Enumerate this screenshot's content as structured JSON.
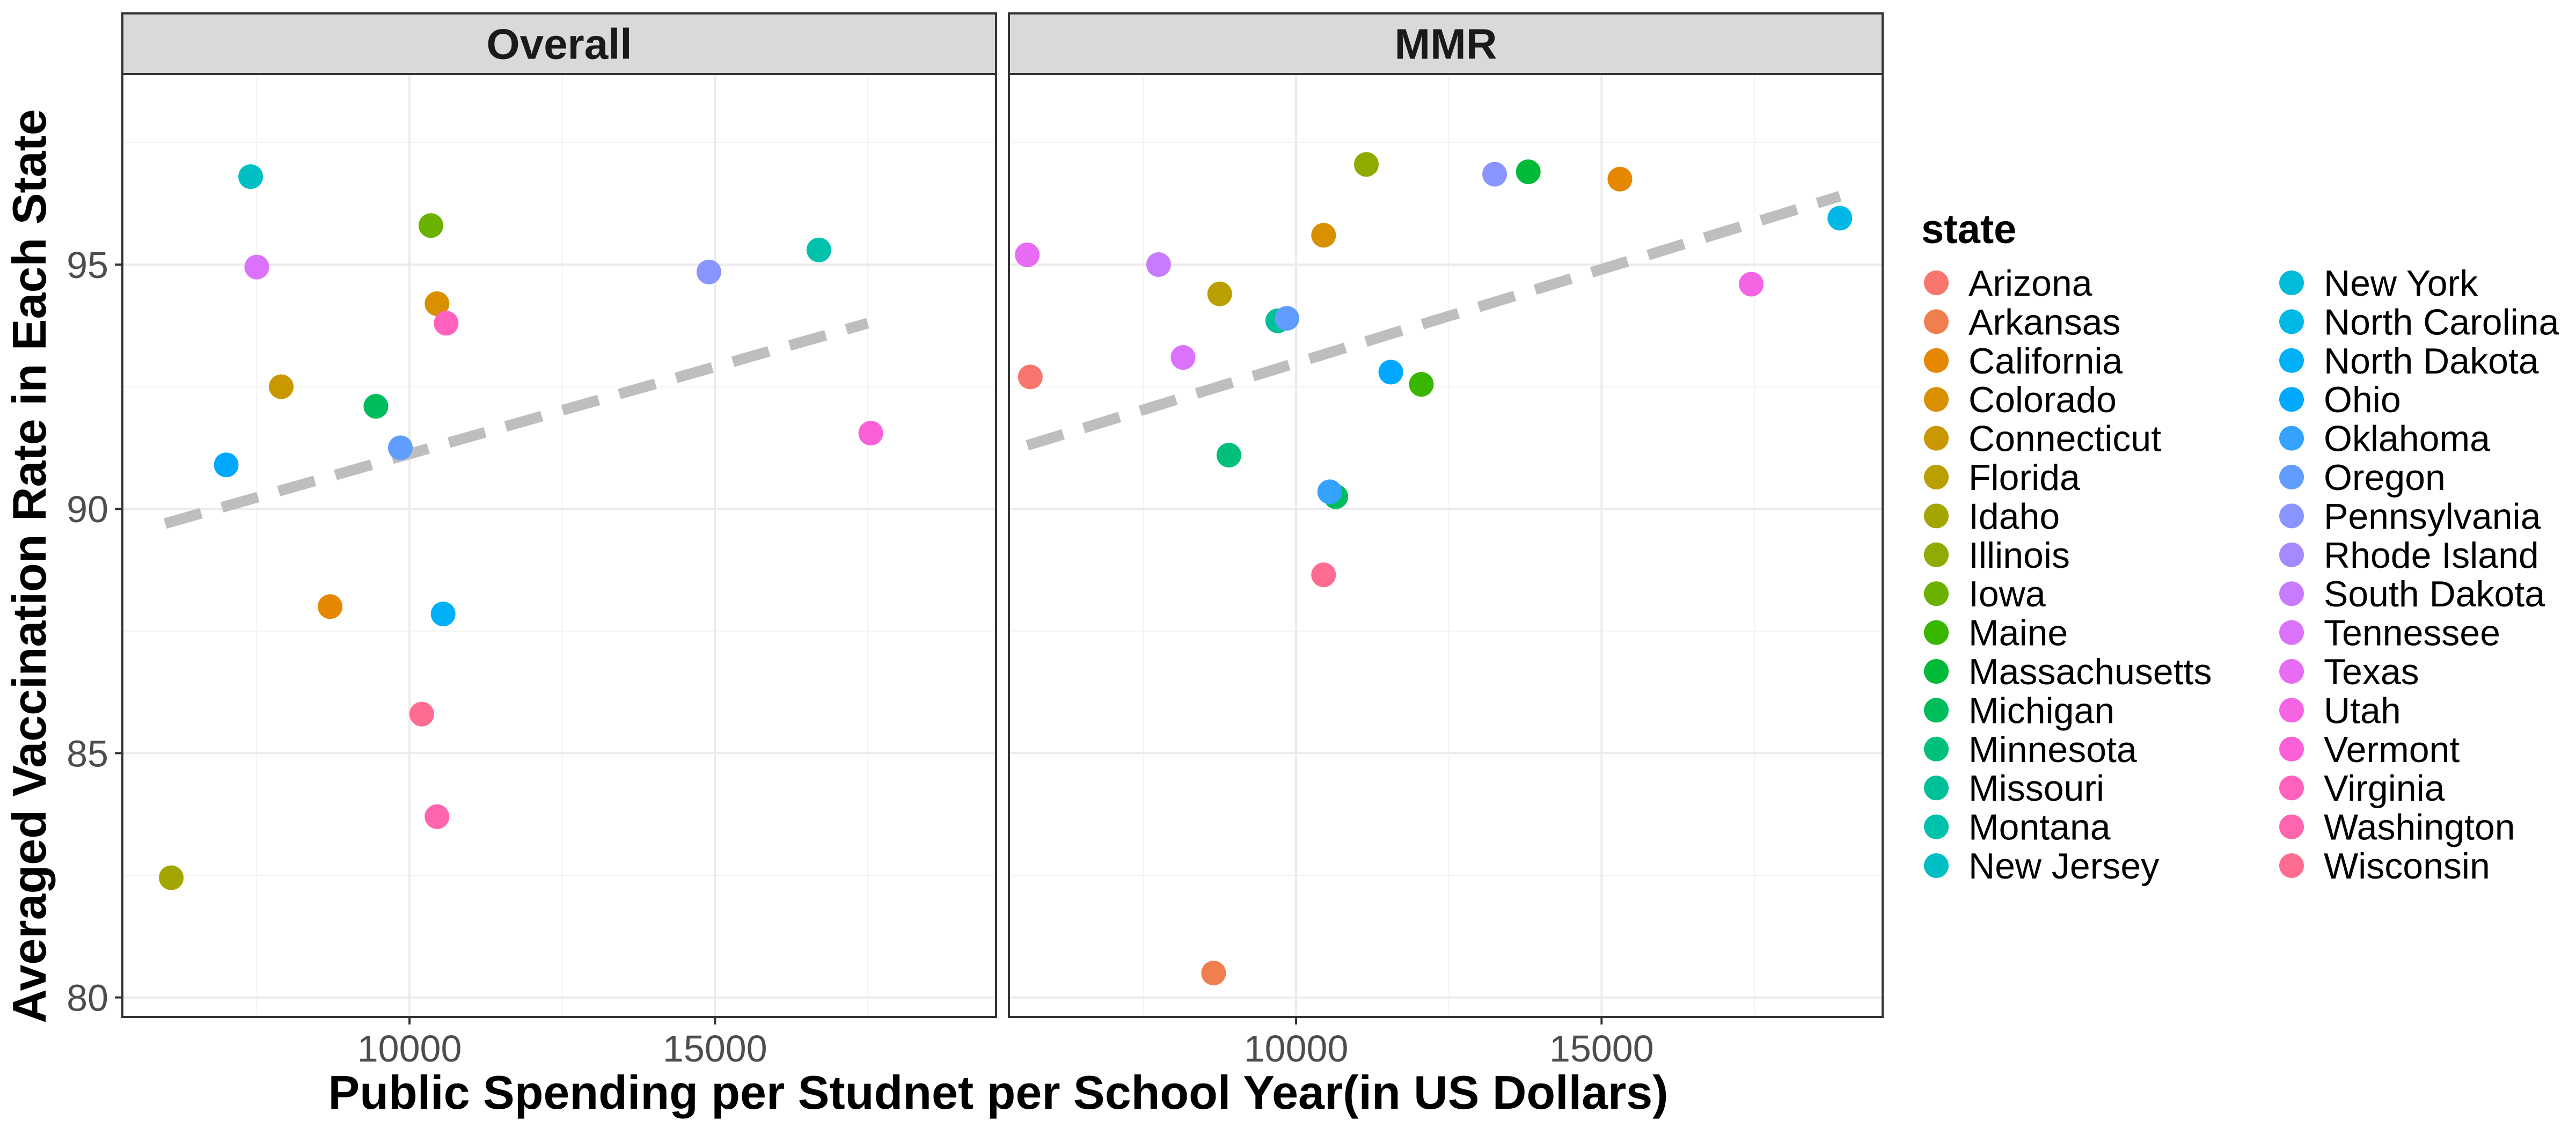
{
  "chart_data": {
    "type": "scatter",
    "xlabel": "Public Spending per Studnet per School Year(in US Dollars)",
    "ylabel": "Averaged Vaccination Rate in Each State",
    "xlim": [
      5300,
      19600
    ],
    "ylim": [
      79.6,
      98.9
    ],
    "x_ticks": [
      10000,
      15000
    ],
    "y_ticks": [
      80,
      85,
      90,
      95
    ],
    "x_tick_labels": [
      "10000",
      "15000"
    ],
    "y_tick_labels": [
      "80",
      "85",
      "90",
      "95"
    ],
    "grid": true,
    "legend_title": "state",
    "legend_position": "right",
    "states": [
      {
        "name": "Arizona",
        "color": "#F8766D"
      },
      {
        "name": "Arkansas",
        "color": "#F07F4F"
      },
      {
        "name": "California",
        "color": "#E58700"
      },
      {
        "name": "Colorado",
        "color": "#D89000"
      },
      {
        "name": "Connecticut",
        "color": "#C99800"
      },
      {
        "name": "Florida",
        "color": "#B9A000"
      },
      {
        "name": "Idaho",
        "color": "#A3A500"
      },
      {
        "name": "Illinois",
        "color": "#8FAA00"
      },
      {
        "name": "Iowa",
        "color": "#6BB100"
      },
      {
        "name": "Maine",
        "color": "#39B600"
      },
      {
        "name": "Massachusetts",
        "color": "#00BA38"
      },
      {
        "name": "Michigan",
        "color": "#00BD5C"
      },
      {
        "name": "Minnesota",
        "color": "#00C07B"
      },
      {
        "name": "Missouri",
        "color": "#00C097"
      },
      {
        "name": "Montana",
        "color": "#00C1AB"
      },
      {
        "name": "New Jersey",
        "color": "#00BFC4"
      },
      {
        "name": "New York",
        "color": "#00BCD8"
      },
      {
        "name": "North Carolina",
        "color": "#00B8E5"
      },
      {
        "name": "North Dakota",
        "color": "#00B0F6"
      },
      {
        "name": "Ohio",
        "color": "#00A9FF"
      },
      {
        "name": "Oklahoma",
        "color": "#35A2FF"
      },
      {
        "name": "Oregon",
        "color": "#619CFF"
      },
      {
        "name": "Pennsylvania",
        "color": "#8A94FF"
      },
      {
        "name": "Rhode Island",
        "color": "#A58AFF"
      },
      {
        "name": "South Dakota",
        "color": "#C77CFF"
      },
      {
        "name": "Tennessee",
        "color": "#DA72FB"
      },
      {
        "name": "Texas",
        "color": "#E76BF3"
      },
      {
        "name": "Utah",
        "color": "#F564E3"
      },
      {
        "name": "Vermont",
        "color": "#FB61D7"
      },
      {
        "name": "Virginia",
        "color": "#FF62BC"
      },
      {
        "name": "Washington",
        "color": "#FF65AE"
      },
      {
        "name": "Wisconsin",
        "color": "#FF6C91"
      }
    ],
    "panels": [
      {
        "strip": "Overall",
        "trend": {
          "x": [
            6000,
            17500
          ],
          "y": [
            89.7,
            93.8
          ],
          "color": "#BEBEBE"
        },
        "points": [
          {
            "state": "New Jersey",
            "x": 7400,
            "y": 96.8
          },
          {
            "state": "Tennessee",
            "x": 7500,
            "y": 94.95
          },
          {
            "state": "Iowa",
            "x": 10350,
            "y": 95.8
          },
          {
            "state": "Pennsylvania",
            "x": 14900,
            "y": 94.85
          },
          {
            "state": "Montana",
            "x": 16700,
            "y": 95.3
          },
          {
            "state": "Colorado",
            "x": 10450,
            "y": 94.2
          },
          {
            "state": "Virginia",
            "x": 10600,
            "y": 93.8
          },
          {
            "state": "Connecticut",
            "x": 7900,
            "y": 92.5
          },
          {
            "state": "Michigan",
            "x": 9450,
            "y": 92.1
          },
          {
            "state": "Oregon",
            "x": 9850,
            "y": 91.25
          },
          {
            "state": "Ohio",
            "x": 7000,
            "y": 90.9
          },
          {
            "state": "Vermont",
            "x": 17550,
            "y": 91.55
          },
          {
            "state": "California",
            "x": 8700,
            "y": 88.0
          },
          {
            "state": "North Dakota",
            "x": 10550,
            "y": 87.85
          },
          {
            "state": "Wisconsin",
            "x": 10200,
            "y": 85.8
          },
          {
            "state": "Washington",
            "x": 10450,
            "y": 83.7
          },
          {
            "state": "Idaho",
            "x": 6100,
            "y": 82.45
          }
        ]
      },
      {
        "strip": "MMR",
        "trend": {
          "x": [
            5600,
            18900
          ],
          "y": [
            91.3,
            96.4
          ],
          "color": "#BEBEBE"
        },
        "points": [
          {
            "state": "Illinois",
            "x": 11150,
            "y": 97.05
          },
          {
            "state": "Massachusetts",
            "x": 13800,
            "y": 96.9
          },
          {
            "state": "Pennsylvania",
            "x": 13250,
            "y": 96.85
          },
          {
            "state": "California",
            "x": 15300,
            "y": 96.75
          },
          {
            "state": "North Carolina",
            "x": 18900,
            "y": 95.95
          },
          {
            "state": "Colorado",
            "x": 10450,
            "y": 95.6
          },
          {
            "state": "Texas",
            "x": 5600,
            "y": 95.2
          },
          {
            "state": "South Dakota",
            "x": 7750,
            "y": 95.0
          },
          {
            "state": "Florida",
            "x": 8750,
            "y": 94.4
          },
          {
            "state": "Utah",
            "x": 17450,
            "y": 94.6
          },
          {
            "state": "Missouri",
            "x": 9700,
            "y": 93.85
          },
          {
            "state": "Oregon",
            "x": 9850,
            "y": 93.9
          },
          {
            "state": "Tennessee",
            "x": 8150,
            "y": 93.1
          },
          {
            "state": "Ohio",
            "x": 11550,
            "y": 92.8
          },
          {
            "state": "Maine",
            "x": 12050,
            "y": 92.55
          },
          {
            "state": "Arizona",
            "x": 5650,
            "y": 92.7
          },
          {
            "state": "Minnesota",
            "x": 8900,
            "y": 91.1
          },
          {
            "state": "Michigan",
            "x": 10650,
            "y": 90.25
          },
          {
            "state": "Oklahoma",
            "x": 10550,
            "y": 90.35
          },
          {
            "state": "Wisconsin",
            "x": 10450,
            "y": 88.65
          },
          {
            "state": "Arkansas",
            "x": 8650,
            "y": 80.5
          }
        ]
      }
    ]
  }
}
